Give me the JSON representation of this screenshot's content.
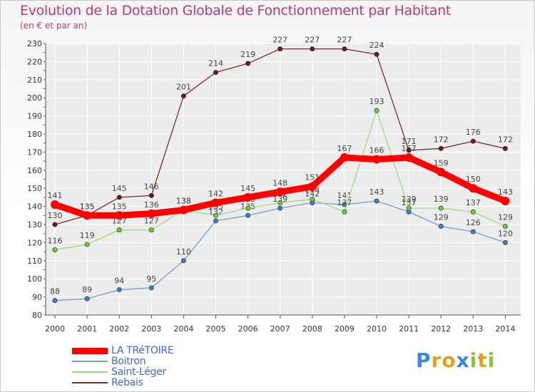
{
  "chart_data": {
    "type": "line",
    "title": "Evolution de la Dotation Globale de Fonctionnement par Habitant",
    "subtitle": "(en € et par an)",
    "xlabel": "",
    "ylabel": "",
    "ylim": [
      80,
      230
    ],
    "yticks": [
      80,
      90,
      100,
      110,
      120,
      130,
      140,
      150,
      160,
      170,
      180,
      190,
      200,
      210,
      220,
      230
    ],
    "categories": [
      "2000",
      "2001",
      "2002",
      "2003",
      "2004",
      "2005",
      "2006",
      "2007",
      "2008",
      "2009",
      "2010",
      "2011",
      "2012",
      "2013",
      "2014"
    ],
    "grid": true,
    "legend_position": "bottom-left",
    "series": [
      {
        "name": "Rebais",
        "color": "#7a2b2b",
        "marker": "#6b1a1a",
        "values": [
          130,
          135,
          145,
          146,
          201,
          214,
          219,
          227,
          227,
          227,
          224,
          171,
          172,
          176,
          172
        ]
      },
      {
        "name": "Boitron",
        "color": "#6fa2cf",
        "marker": "#3a7fc0",
        "values": [
          88,
          89,
          94,
          95,
          110,
          132,
          135,
          139,
          142,
          141,
          143,
          137,
          129,
          126,
          120
        ]
      },
      {
        "name": "Saint-Léger",
        "color": "#9ade7a",
        "marker": "#66cc33",
        "values": [
          116,
          119,
          127,
          127,
          138,
          135,
          139,
          142,
          144,
          137,
          193,
          139,
          139,
          137,
          129
        ]
      },
      {
        "name": "LA TRéTOIRE",
        "color": "#ff0000",
        "marker": "#ff0000",
        "values": [
          141,
          135,
          135,
          136,
          138,
          142,
          145,
          148,
          151,
          167,
          166,
          167,
          159,
          150,
          143
        ]
      }
    ]
  },
  "legend": {
    "items": [
      {
        "label": "LA TRéTOIRE",
        "color": "#ff0000",
        "text_color": "#4466cc"
      },
      {
        "label": "Boitron",
        "color": "#6fa2cf",
        "text_color": "#4466cc"
      },
      {
        "label": "Saint-Léger",
        "color": "#9ade7a",
        "text_color": "#4466cc"
      },
      {
        "label": "Rebais",
        "color": "#7a2b2b",
        "text_color": "#4466cc"
      }
    ]
  },
  "logo": {
    "text": "Proxiti",
    "letters": [
      {
        "ch": "P",
        "color": "#3a88d8"
      },
      {
        "ch": "r",
        "color": "#e8a020"
      },
      {
        "ch": "o",
        "color": "#e8a020"
      },
      {
        "ch": "x",
        "color": "#3a88d8"
      },
      {
        "ch": "i",
        "color": "#8ac440"
      },
      {
        "ch": "t",
        "color": "#e8a020"
      },
      {
        "ch": "i",
        "color": "#8ac440"
      }
    ]
  }
}
